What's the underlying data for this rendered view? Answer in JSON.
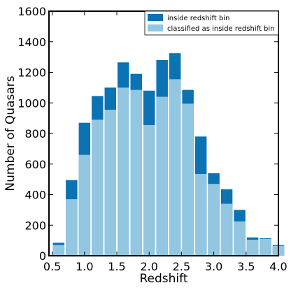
{
  "chart_data": {
    "type": "bar",
    "stacked": false,
    "overlay": true,
    "xlabel": "Redshift",
    "ylabel": "Number of Quasars",
    "xlim": [
      0.45,
      4.0
    ],
    "ylim": [
      0,
      1600
    ],
    "xticks": [
      "0.5",
      "1.0",
      "1.5",
      "2.0",
      "2.5",
      "3.0",
      "3.5",
      "4.0"
    ],
    "yticks": [
      "0",
      "200",
      "400",
      "600",
      "800",
      "1000",
      "1200",
      "1400",
      "1600"
    ],
    "bin_width": 0.2,
    "bin_starts": [
      0.5,
      0.7,
      0.9,
      1.1,
      1.3,
      1.5,
      1.7,
      1.9,
      2.1,
      2.3,
      2.5,
      2.7,
      2.9,
      3.1,
      3.3,
      3.5,
      3.7,
      3.9
    ],
    "series": [
      {
        "name": "inside redshift bin",
        "color": "#0b72b3",
        "values": [
          85,
          495,
          870,
          1045,
          1100,
          1265,
          1190,
          1080,
          1280,
          1325,
          1085,
          780,
          540,
          435,
          300,
          120,
          115,
          70
        ]
      },
      {
        "name": "classified as inside redshift bin",
        "color": "#93c6e0",
        "values": [
          70,
          370,
          660,
          890,
          955,
          1100,
          1085,
          855,
          1040,
          1155,
          995,
          535,
          470,
          340,
          225,
          105,
          110,
          65
        ]
      }
    ],
    "legend_position": "top-right",
    "grid": false
  }
}
